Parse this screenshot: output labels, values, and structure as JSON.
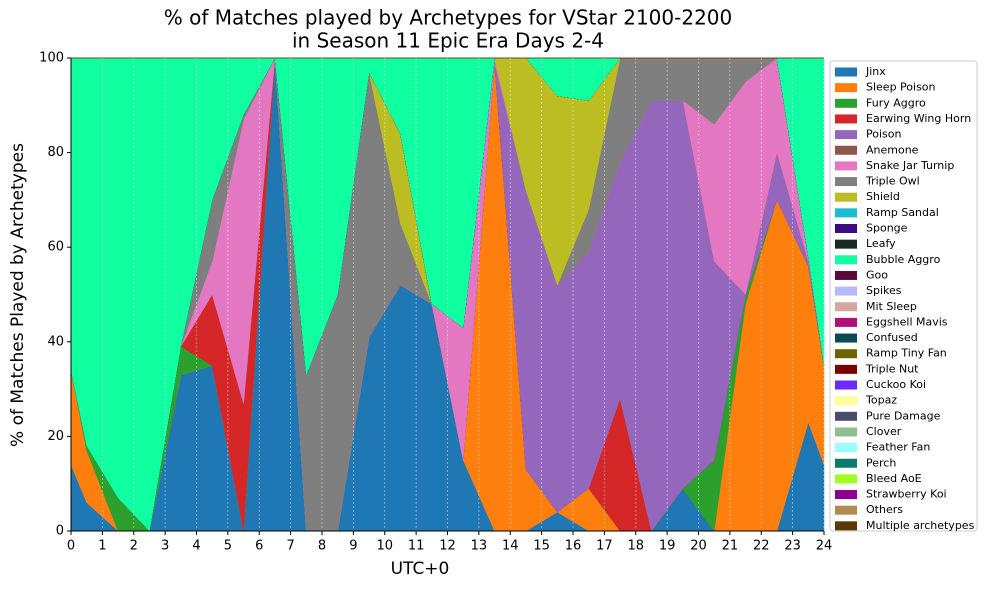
{
  "chart_data": {
    "type": "stacked_area",
    "title": [
      "% of Matches played by Archetypes for VStar 2100-2200",
      "in Season 11 Epic Era Days 2-4"
    ],
    "x_label": "UTC+0",
    "y_label": "% of Matches Played by Archetypes",
    "x": [
      0,
      0.5,
      1.5,
      2.5,
      3.5,
      4.5,
      5.5,
      6.5,
      7.5,
      8.5,
      9.5,
      10.5,
      11.5,
      12.5,
      13.5,
      14.5,
      15.5,
      16.5,
      17.5,
      18.5,
      19.5,
      20.5,
      21.5,
      22.5,
      23.5,
      24
    ],
    "xlim": [
      0,
      24
    ],
    "xticks": [
      0,
      1,
      2,
      3,
      4,
      5,
      6,
      7,
      8,
      9,
      10,
      11,
      12,
      13,
      14,
      15,
      16,
      17,
      18,
      19,
      20,
      21,
      22,
      23,
      24
    ],
    "ylim": [
      0,
      100
    ],
    "yticks": [
      0,
      20,
      40,
      60,
      80,
      100
    ],
    "grid": "x",
    "legend": "outside right",
    "series": [
      {
        "name": "Jinx",
        "color": "#1f77b4",
        "values": [
          14,
          6,
          0,
          0,
          33,
          35,
          0,
          100,
          0,
          0,
          41,
          52,
          48,
          15,
          0,
          0,
          4,
          0,
          0,
          0,
          9,
          0,
          0,
          0,
          23,
          14
        ]
      },
      {
        "name": "Sleep Poison",
        "color": "#ff7f0e",
        "values": [
          20,
          11,
          0,
          0,
          0,
          0,
          0,
          0,
          0,
          0,
          0,
          0,
          0,
          0,
          99,
          13,
          0,
          9,
          0,
          0,
          0,
          0,
          48,
          70,
          33,
          21
        ]
      },
      {
        "name": "Fury Aggro",
        "color": "#2ca02c",
        "values": [
          0,
          1,
          7,
          0,
          6,
          0,
          0,
          0,
          0,
          0,
          0,
          0,
          0,
          0,
          0,
          0,
          0,
          0,
          0,
          0,
          0,
          15,
          2,
          0,
          0,
          0
        ]
      },
      {
        "name": "Earwing Wing Horn",
        "color": "#d62728",
        "values": [
          0,
          0,
          0,
          0,
          0,
          15,
          27,
          0,
          0,
          0,
          0,
          0,
          0,
          0,
          0,
          0,
          0,
          0,
          28,
          0,
          0,
          0,
          0,
          0,
          0,
          0
        ]
      },
      {
        "name": "Poison",
        "color": "#9467bd",
        "values": [
          0,
          0,
          0,
          0,
          0,
          0,
          0,
          0,
          0,
          0,
          0,
          0,
          0,
          0,
          0,
          59,
          48,
          50,
          50,
          91,
          82,
          42,
          0,
          10,
          1,
          0
        ]
      },
      {
        "name": "Anemone",
        "color": "#8c564b",
        "values": [
          0,
          0,
          0,
          0,
          0,
          0,
          0,
          0,
          0,
          0,
          0,
          0,
          0,
          0,
          0,
          0,
          0,
          0,
          0,
          0,
          0,
          0,
          0,
          0,
          0,
          0
        ]
      },
      {
        "name": "Snake Jar Turnip",
        "color": "#e377c2",
        "values": [
          0,
          0,
          0,
          0,
          0,
          7,
          60,
          0,
          0,
          0,
          0,
          0,
          0,
          28,
          1,
          0,
          0,
          0,
          0,
          0,
          0,
          29,
          45,
          20,
          1,
          0
        ]
      },
      {
        "name": "Triple Owl",
        "color": "#7f7f7f",
        "values": [
          0,
          0,
          0,
          0,
          0,
          13,
          1,
          0,
          33,
          50,
          56,
          13,
          0,
          0,
          0,
          0,
          0,
          9,
          22,
          9,
          9,
          14,
          5,
          0,
          0,
          0
        ]
      },
      {
        "name": "Shield",
        "color": "#bcbd22",
        "values": [
          0,
          0,
          0,
          0,
          0,
          0,
          0,
          0,
          0,
          0,
          0,
          19,
          0,
          0,
          0,
          28,
          40,
          23,
          0,
          0,
          0,
          0,
          0,
          0,
          0,
          0
        ]
      },
      {
        "name": "Ramp Sandal",
        "color": "#17becf",
        "values": [
          0,
          0,
          0,
          0,
          0,
          0,
          0,
          0,
          0,
          0,
          0,
          0,
          0,
          0,
          0,
          0,
          0,
          0,
          0,
          0,
          0,
          0,
          0,
          0,
          0,
          0
        ]
      },
      {
        "name": "Sponge",
        "color": "#3d0a80",
        "values": [
          0,
          0,
          0,
          0,
          0,
          0,
          0,
          0,
          0,
          0,
          0,
          0,
          0,
          0,
          0,
          0,
          0,
          0,
          0,
          0,
          0,
          0,
          0,
          0,
          0,
          0
        ]
      },
      {
        "name": "Leafy",
        "color": "#1a2a20",
        "values": [
          0,
          0,
          0,
          0,
          0,
          0,
          0,
          0,
          0,
          0,
          0,
          0,
          0,
          0,
          0,
          0,
          0,
          0,
          0,
          0,
          0,
          0,
          0,
          0,
          0,
          0
        ]
      },
      {
        "name": "Bubble Aggro",
        "color": "#10ffa0",
        "values": [
          66,
          82,
          93,
          100,
          61,
          30,
          12,
          0,
          67,
          50,
          3,
          16,
          52,
          57,
          0,
          0,
          8,
          9,
          0,
          0,
          0,
          0,
          0,
          0,
          42,
          65
        ]
      },
      {
        "name": "Goo",
        "color": "#5a0a3a",
        "values": [
          0,
          0,
          0,
          0,
          0,
          0,
          0,
          0,
          0,
          0,
          0,
          0,
          0,
          0,
          0,
          0,
          0,
          0,
          0,
          0,
          0,
          0,
          0,
          0,
          0,
          0
        ]
      },
      {
        "name": "Spikes",
        "color": "#b8b8ff",
        "values": [
          0,
          0,
          0,
          0,
          0,
          0,
          0,
          0,
          0,
          0,
          0,
          0,
          0,
          0,
          0,
          0,
          0,
          0,
          0,
          0,
          0,
          0,
          0,
          0,
          0,
          0
        ]
      },
      {
        "name": "Mit Sleep",
        "color": "#d4a8a0",
        "values": [
          0,
          0,
          0,
          0,
          0,
          0,
          0,
          0,
          0,
          0,
          0,
          0,
          0,
          0,
          0,
          0,
          0,
          0,
          0,
          0,
          0,
          0,
          0,
          0,
          0,
          0
        ]
      },
      {
        "name": "Eggshell Mavis",
        "color": "#b0107a",
        "values": [
          0,
          0,
          0,
          0,
          0,
          0,
          0,
          0,
          0,
          0,
          0,
          0,
          0,
          0,
          0,
          0,
          0,
          0,
          0,
          0,
          0,
          0,
          0,
          0,
          0,
          0
        ]
      },
      {
        "name": "Confused",
        "color": "#0a4a50",
        "values": [
          0,
          0,
          0,
          0,
          0,
          0,
          0,
          0,
          0,
          0,
          0,
          0,
          0,
          0,
          0,
          0,
          0,
          0,
          0,
          0,
          0,
          0,
          0,
          0,
          0,
          0
        ]
      },
      {
        "name": "Ramp Tiny Fan",
        "color": "#6b6400",
        "values": [
          0,
          0,
          0,
          0,
          0,
          0,
          0,
          0,
          0,
          0,
          0,
          0,
          0,
          0,
          0,
          0,
          0,
          0,
          0,
          0,
          0,
          0,
          0,
          0,
          0,
          0
        ]
      },
      {
        "name": "Triple Nut",
        "color": "#7a0000",
        "values": [
          0,
          0,
          0,
          0,
          0,
          0,
          0,
          0,
          0,
          0,
          0,
          0,
          0,
          0,
          0,
          0,
          0,
          0,
          0,
          0,
          0,
          0,
          0,
          0,
          0,
          0
        ]
      },
      {
        "name": "Cuckoo Koi",
        "color": "#6a2aff",
        "values": [
          0,
          0,
          0,
          0,
          0,
          0,
          0,
          0,
          0,
          0,
          0,
          0,
          0,
          0,
          0,
          0,
          0,
          0,
          0,
          0,
          0,
          0,
          0,
          0,
          0,
          0
        ]
      },
      {
        "name": "Topaz",
        "color": "#ffff99",
        "values": [
          0,
          0,
          0,
          0,
          0,
          0,
          0,
          0,
          0,
          0,
          0,
          0,
          0,
          0,
          0,
          0,
          0,
          0,
          0,
          0,
          0,
          0,
          0,
          0,
          0,
          0
        ]
      },
      {
        "name": "Pure Damage",
        "color": "#4a4a6a",
        "values": [
          0,
          0,
          0,
          0,
          0,
          0,
          0,
          0,
          0,
          0,
          0,
          0,
          0,
          0,
          0,
          0,
          0,
          0,
          0,
          0,
          0,
          0,
          0,
          0,
          0,
          0
        ]
      },
      {
        "name": "Clover",
        "color": "#8fbf8f",
        "values": [
          0,
          0,
          0,
          0,
          0,
          0,
          0,
          0,
          0,
          0,
          0,
          0,
          0,
          0,
          0,
          0,
          0,
          0,
          0,
          0,
          0,
          0,
          0,
          0,
          0,
          0
        ]
      },
      {
        "name": "Feather Fan",
        "color": "#99ffff",
        "values": [
          0,
          0,
          0,
          0,
          0,
          0,
          0,
          0,
          0,
          0,
          0,
          0,
          0,
          0,
          0,
          0,
          0,
          0,
          0,
          0,
          0,
          0,
          0,
          0,
          0,
          0
        ]
      },
      {
        "name": "Perch",
        "color": "#0a7a6a",
        "values": [
          0,
          0,
          0,
          0,
          0,
          0,
          0,
          0,
          0,
          0,
          0,
          0,
          0,
          0,
          0,
          0,
          0,
          0,
          0,
          0,
          0,
          0,
          0,
          0,
          0,
          0
        ]
      },
      {
        "name": "Bleed AoE",
        "color": "#a0ff20",
        "values": [
          0,
          0,
          0,
          0,
          0,
          0,
          0,
          0,
          0,
          0,
          0,
          0,
          0,
          0,
          0,
          0,
          0,
          0,
          0,
          0,
          0,
          0,
          0,
          0,
          0,
          0
        ]
      },
      {
        "name": "Strawberry Koi",
        "color": "#8a0090",
        "values": [
          0,
          0,
          0,
          0,
          0,
          0,
          0,
          0,
          0,
          0,
          0,
          0,
          0,
          0,
          0,
          0,
          0,
          0,
          0,
          0,
          0,
          0,
          0,
          0,
          0,
          0
        ]
      },
      {
        "name": "Others",
        "color": "#b08a50",
        "values": [
          0,
          0,
          0,
          0,
          0,
          0,
          0,
          0,
          0,
          0,
          0,
          0,
          0,
          0,
          0,
          0,
          0,
          0,
          0,
          0,
          0,
          0,
          0,
          0,
          0,
          0
        ]
      },
      {
        "name": "Multiple archetypes",
        "color": "#5a3a00",
        "values": [
          0,
          0,
          0,
          0,
          0,
          0,
          0,
          0,
          0,
          0,
          0,
          0,
          0,
          0,
          0,
          0,
          0,
          0,
          0,
          0,
          0,
          0,
          0,
          0,
          0,
          0
        ]
      }
    ]
  }
}
